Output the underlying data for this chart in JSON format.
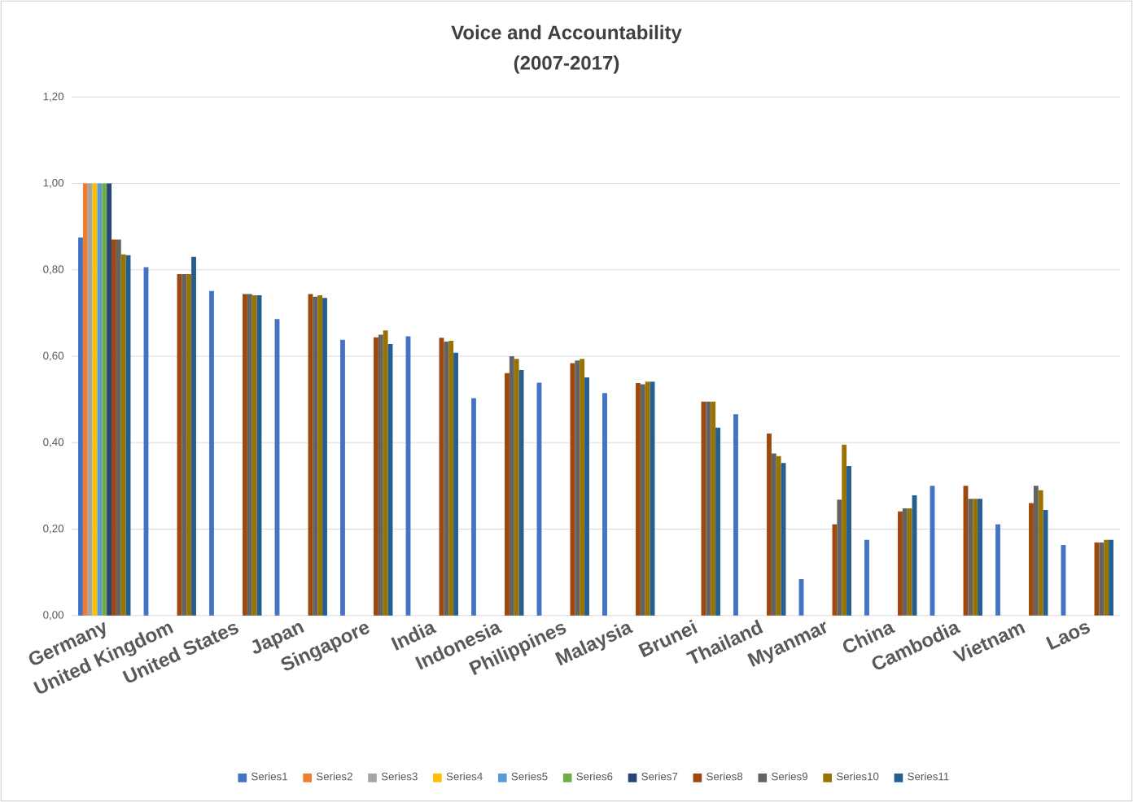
{
  "chart_data": {
    "type": "bar",
    "title": "Voice and Accountability",
    "subtitle": "(2007-2017)",
    "categories": [
      "Germany",
      "United Kingdom",
      "United States",
      "Japan",
      "Singapore",
      "India",
      "Indonesia",
      "Philippines",
      "Malaysia",
      "Brunei",
      "Thailand",
      "Myanmar",
      "China",
      "Cambodia",
      "Vietnam",
      "Laos"
    ],
    "series": [
      {
        "name": "Series1",
        "color": "#4472c4",
        "values": [
          0.875,
          0.806,
          0.751,
          0.686,
          0.638,
          0.646,
          0.503,
          0.539,
          0.515,
          null,
          0.466,
          0.084,
          0.175,
          0.3,
          0.211,
          0.163
        ]
      },
      {
        "name": "Series2",
        "color": "#ed7d31",
        "values": [
          1.0,
          null,
          null,
          null,
          null,
          null,
          null,
          null,
          null,
          null,
          null,
          null,
          null,
          null,
          null,
          null
        ]
      },
      {
        "name": "Series3",
        "color": "#a5a5a5",
        "values": [
          1.0,
          null,
          null,
          null,
          null,
          null,
          null,
          null,
          null,
          null,
          null,
          null,
          null,
          null,
          null,
          null
        ]
      },
      {
        "name": "Series4",
        "color": "#ffc000",
        "values": [
          1.0,
          null,
          null,
          null,
          null,
          null,
          null,
          null,
          null,
          null,
          null,
          null,
          null,
          null,
          null,
          null
        ]
      },
      {
        "name": "Series5",
        "color": "#5b9bd5",
        "values": [
          1.0,
          null,
          null,
          null,
          null,
          null,
          null,
          null,
          null,
          null,
          null,
          null,
          null,
          null,
          null,
          null
        ]
      },
      {
        "name": "Series6",
        "color": "#70ad47",
        "values": [
          1.0,
          null,
          null,
          null,
          null,
          null,
          null,
          null,
          null,
          null,
          null,
          null,
          null,
          null,
          null,
          null
        ]
      },
      {
        "name": "Series7",
        "color": "#264478",
        "values": [
          1.0,
          null,
          null,
          null,
          null,
          null,
          null,
          null,
          null,
          null,
          null,
          null,
          null,
          null,
          null,
          null
        ]
      },
      {
        "name": "Series8",
        "color": "#9e480e",
        "values": [
          0.87,
          0.79,
          0.744,
          0.744,
          0.644,
          0.643,
          0.561,
          0.584,
          0.538,
          0.495,
          0.421,
          0.211,
          0.241,
          0.3,
          0.26,
          0.169
        ]
      },
      {
        "name": "Series9",
        "color": "#636363",
        "values": [
          0.87,
          0.79,
          0.744,
          0.738,
          0.65,
          0.634,
          0.6,
          0.59,
          0.535,
          0.495,
          0.375,
          0.268,
          0.248,
          0.27,
          0.3,
          0.169
        ]
      },
      {
        "name": "Series10",
        "color": "#997300",
        "values": [
          0.836,
          0.79,
          0.741,
          0.741,
          0.66,
          0.636,
          0.594,
          0.594,
          0.541,
          0.495,
          0.369,
          0.395,
          0.248,
          0.27,
          0.29,
          0.175
        ]
      },
      {
        "name": "Series11",
        "color": "#255e91",
        "values": [
          0.834,
          0.83,
          0.741,
          0.735,
          0.628,
          0.608,
          0.568,
          0.551,
          0.541,
          0.435,
          0.353,
          0.346,
          0.278,
          0.27,
          0.244,
          0.175
        ]
      }
    ],
    "ylim": [
      0,
      1.2
    ],
    "yticks": [
      {
        "value": 0,
        "label": "0,00"
      },
      {
        "value": 0.2,
        "label": "0,20"
      },
      {
        "value": 0.4,
        "label": "0,40"
      },
      {
        "value": 0.6,
        "label": "0,60"
      },
      {
        "value": 0.8,
        "label": "0,80"
      },
      {
        "value": 1.0,
        "label": "1,00"
      },
      {
        "value": 1.2,
        "label": "1,20"
      }
    ],
    "grid": "y",
    "legend": "bottom"
  }
}
